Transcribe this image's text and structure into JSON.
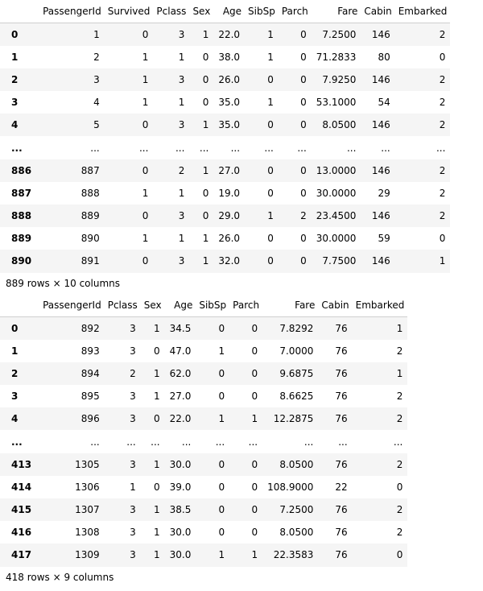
{
  "tables": [
    {
      "columns": [
        "",
        "PassengerId",
        "Survived",
        "Pclass",
        "Sex",
        "Age",
        "SibSp",
        "Parch",
        "Fare",
        "Cabin",
        "Embarked"
      ],
      "rows": [
        [
          "0",
          "1",
          "0",
          "3",
          "1",
          "22.0",
          "1",
          "0",
          "7.2500",
          "146",
          "2"
        ],
        [
          "1",
          "2",
          "1",
          "1",
          "0",
          "38.0",
          "1",
          "0",
          "71.2833",
          "80",
          "0"
        ],
        [
          "2",
          "3",
          "1",
          "3",
          "0",
          "26.0",
          "0",
          "0",
          "7.9250",
          "146",
          "2"
        ],
        [
          "3",
          "4",
          "1",
          "1",
          "0",
          "35.0",
          "1",
          "0",
          "53.1000",
          "54",
          "2"
        ],
        [
          "4",
          "5",
          "0",
          "3",
          "1",
          "35.0",
          "0",
          "0",
          "8.0500",
          "146",
          "2"
        ],
        [
          "...",
          "...",
          "...",
          "...",
          "...",
          "...",
          "...",
          "...",
          "...",
          "...",
          "..."
        ],
        [
          "886",
          "887",
          "0",
          "2",
          "1",
          "27.0",
          "0",
          "0",
          "13.0000",
          "146",
          "2"
        ],
        [
          "887",
          "888",
          "1",
          "1",
          "0",
          "19.0",
          "0",
          "0",
          "30.0000",
          "29",
          "2"
        ],
        [
          "888",
          "889",
          "0",
          "3",
          "0",
          "29.0",
          "1",
          "2",
          "23.4500",
          "146",
          "2"
        ],
        [
          "889",
          "890",
          "1",
          "1",
          "1",
          "26.0",
          "0",
          "0",
          "30.0000",
          "59",
          "0"
        ],
        [
          "890",
          "891",
          "0",
          "3",
          "1",
          "32.0",
          "0",
          "0",
          "7.7500",
          "146",
          "1"
        ]
      ],
      "shape": "889 rows × 10 columns"
    },
    {
      "columns": [
        "",
        "PassengerId",
        "Pclass",
        "Sex",
        "Age",
        "SibSp",
        "Parch",
        "Fare",
        "Cabin",
        "Embarked"
      ],
      "rows": [
        [
          "0",
          "892",
          "3",
          "1",
          "34.5",
          "0",
          "0",
          "7.8292",
          "76",
          "1"
        ],
        [
          "1",
          "893",
          "3",
          "0",
          "47.0",
          "1",
          "0",
          "7.0000",
          "76",
          "2"
        ],
        [
          "2",
          "894",
          "2",
          "1",
          "62.0",
          "0",
          "0",
          "9.6875",
          "76",
          "1"
        ],
        [
          "3",
          "895",
          "3",
          "1",
          "27.0",
          "0",
          "0",
          "8.6625",
          "76",
          "2"
        ],
        [
          "4",
          "896",
          "3",
          "0",
          "22.0",
          "1",
          "1",
          "12.2875",
          "76",
          "2"
        ],
        [
          "...",
          "...",
          "...",
          "...",
          "...",
          "...",
          "...",
          "...",
          "...",
          "..."
        ],
        [
          "413",
          "1305",
          "3",
          "1",
          "30.0",
          "0",
          "0",
          "8.0500",
          "76",
          "2"
        ],
        [
          "414",
          "1306",
          "1",
          "0",
          "39.0",
          "0",
          "0",
          "108.9000",
          "22",
          "0"
        ],
        [
          "415",
          "1307",
          "3",
          "1",
          "38.5",
          "0",
          "0",
          "7.2500",
          "76",
          "2"
        ],
        [
          "416",
          "1308",
          "3",
          "1",
          "30.0",
          "0",
          "0",
          "8.0500",
          "76",
          "2"
        ],
        [
          "417",
          "1309",
          "3",
          "1",
          "30.0",
          "1",
          "1",
          "22.3583",
          "76",
          "0"
        ]
      ],
      "shape": "418 rows × 9 columns"
    }
  ]
}
